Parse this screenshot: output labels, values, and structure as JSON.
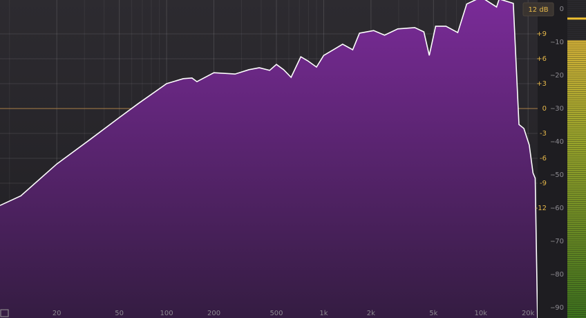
{
  "chart_data": {
    "type": "area",
    "log_x": true,
    "grid": true,
    "range_button": "12 dB",
    "zero_line_color": "#b8894a",
    "x": [
      8.7,
      11.8,
      20,
      32.4,
      50,
      66,
      100,
      127.5,
      145,
      156,
      200,
      273,
      334,
      389,
      453,
      500,
      556,
      620,
      715,
      790,
      900,
      1000,
      1190,
      1320,
      1530,
      1690,
      2080,
      2440,
      2960,
      3800,
      4340,
      4700,
      5160,
      6000,
      7130,
      8140,
      9500,
      10500,
      12600,
      13100,
      16100,
      17500,
      18800,
      20350,
      21500,
      22200,
      23000
    ],
    "series": [
      {
        "color": "#ffffff",
        "fill": "#6e2a8a",
        "values": [
          -59.2,
          -56.3,
          -46.7,
          -39.4,
          -32.7,
          -28.5,
          -22.5,
          -21.0,
          -20.8,
          -21.9,
          -19.2,
          -19.6,
          -18.3,
          -17.7,
          -18.5,
          -16.7,
          -18.3,
          -20.6,
          -14.4,
          -15.6,
          -17.5,
          -14.0,
          -11.9,
          -10.6,
          -12.3,
          -7.3,
          -6.5,
          -7.9,
          -6.0,
          -5.6,
          -6.9,
          -14.0,
          -5.2,
          -5.2,
          -7.1,
          1.5,
          3,
          3,
          0.6,
          3,
          1.7,
          -34.8,
          -36.0,
          -41.0,
          -49.4,
          -51.0,
          -95
        ]
      }
    ],
    "xlim": [
      8.7,
      23000
    ],
    "xticks": [
      20,
      50,
      100,
      200,
      500,
      {
        "value": 1000,
        "label": "1k"
      },
      {
        "value": 2000,
        "label": "2k"
      },
      {
        "value": 5000,
        "label": "5k"
      },
      {
        "value": 10000,
        "label": "10k"
      },
      {
        "value": 20000,
        "label": "20k"
      }
    ],
    "x_minor_ticks": [
      10,
      30,
      40,
      60,
      70,
      80,
      90,
      300,
      400,
      600,
      700,
      800,
      900,
      3000,
      4000,
      6000,
      7000,
      8000,
      9000
    ],
    "ylim": [
      -93.1,
      2.7
    ],
    "yticks": [
      0,
      -10,
      -20,
      -30,
      -40,
      -50,
      -60,
      -70,
      -80,
      -90
    ],
    "y2lim": [
      -25.25,
      13.08
    ],
    "y2ticks": [
      {
        "value": 9,
        "label": "+9"
      },
      {
        "value": 6,
        "label": "+6"
      },
      {
        "value": 3,
        "label": "+3"
      },
      0,
      -3,
      -6,
      -9,
      -12
    ],
    "meter": {
      "peak": -2.9,
      "level": -9.4
    }
  }
}
